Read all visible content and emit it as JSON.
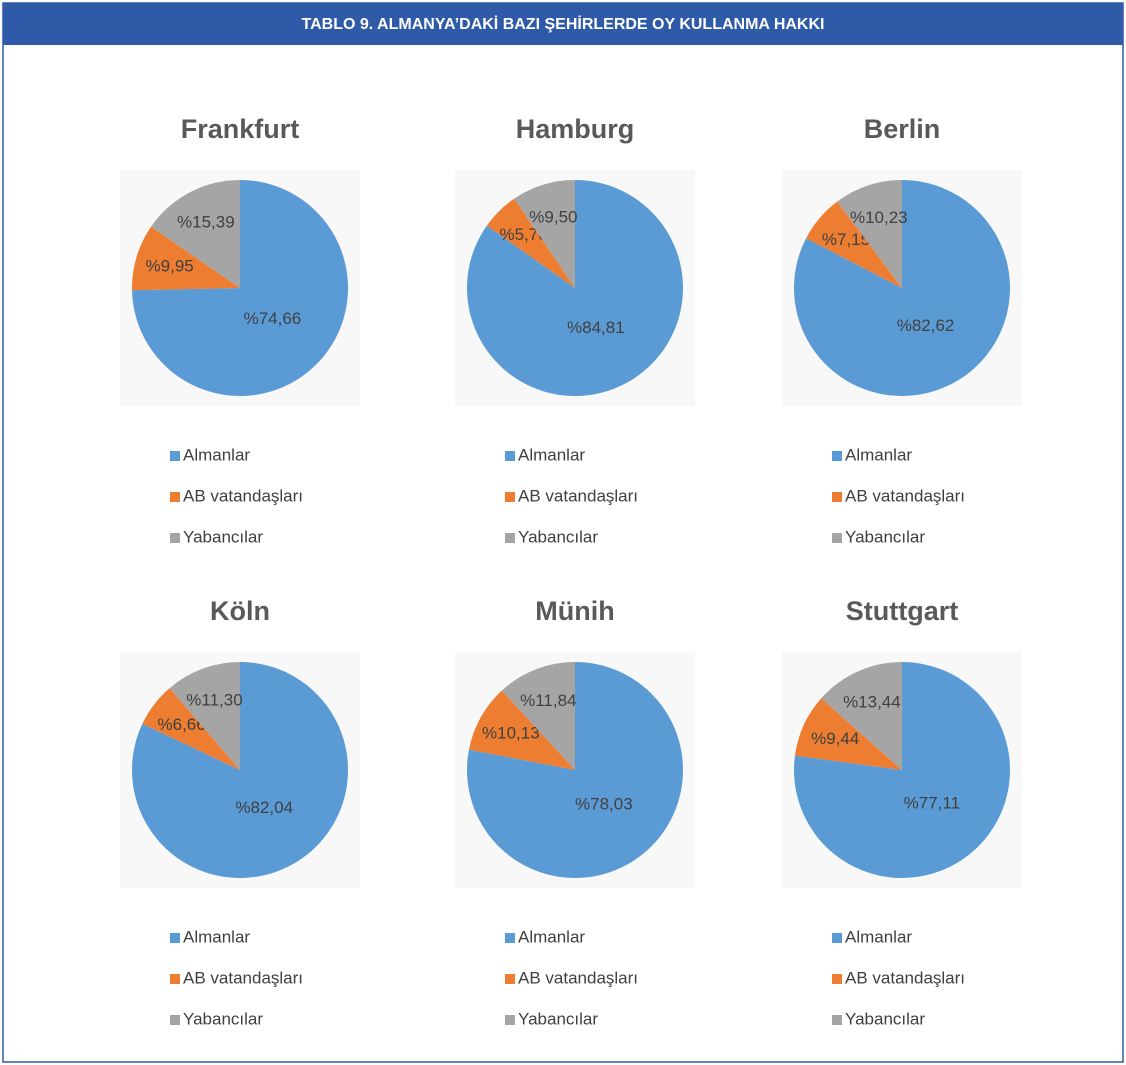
{
  "header": {
    "title": "TABLO 9. ALMANYA’DAKİ BAZI ŞEHİRLERDE OY KULLANMA HAKKI"
  },
  "chart_data": [
    {
      "type": "pie",
      "title": "Frankfurt",
      "categories": [
        "Almanlar",
        "AB vatandaşları",
        "Yabancılar"
      ],
      "values": [
        74.66,
        9.95,
        15.39
      ],
      "value_labels": [
        "%74,66",
        "%9,95",
        "%15,39"
      ],
      "colors": [
        "#5b9bd5",
        "#ed7d31",
        "#a5a5a5"
      ]
    },
    {
      "type": "pie",
      "title": "Hamburg",
      "categories": [
        "Almanlar",
        "AB vatandaşları",
        "Yabancılar"
      ],
      "values": [
        84.81,
        5.7,
        9.5
      ],
      "value_labels": [
        "%84,81",
        "%5,70",
        "%9,50"
      ],
      "colors": [
        "#5b9bd5",
        "#ed7d31",
        "#a5a5a5"
      ]
    },
    {
      "type": "pie",
      "title": "Berlin",
      "categories": [
        "Almanlar",
        "AB vatandaşları",
        "Yabancılar"
      ],
      "values": [
        82.62,
        7.15,
        10.23
      ],
      "value_labels": [
        "%82,62",
        "%7,15",
        "%10,23"
      ],
      "colors": [
        "#5b9bd5",
        "#ed7d31",
        "#a5a5a5"
      ]
    },
    {
      "type": "pie",
      "title": "Köln",
      "categories": [
        "Almanlar",
        "AB vatandaşları",
        "Yabancılar"
      ],
      "values": [
        82.04,
        6.66,
        11.3
      ],
      "value_labels": [
        "%82,04",
        "%6,66",
        "%11,30"
      ],
      "colors": [
        "#5b9bd5",
        "#ed7d31",
        "#a5a5a5"
      ]
    },
    {
      "type": "pie",
      "title": "Münih",
      "categories": [
        "Almanlar",
        "AB vatandaşları",
        "Yabancılar"
      ],
      "values": [
        78.03,
        10.13,
        11.84
      ],
      "value_labels": [
        "%78,03",
        "%10,13",
        "%11,84"
      ],
      "colors": [
        "#5b9bd5",
        "#ed7d31",
        "#a5a5a5"
      ]
    },
    {
      "type": "pie",
      "title": "Stuttgart",
      "categories": [
        "Almanlar",
        "AB vatandaşları",
        "Yabancılar"
      ],
      "values": [
        77.11,
        9.44,
        13.44
      ],
      "value_labels": [
        "%77,11",
        "%9,44",
        "%13,44"
      ],
      "colors": [
        "#5b9bd5",
        "#ed7d31",
        "#a5a5a5"
      ]
    }
  ]
}
